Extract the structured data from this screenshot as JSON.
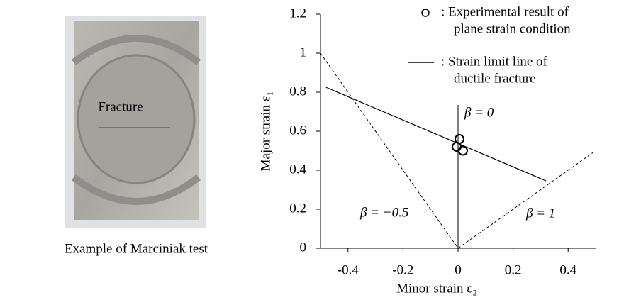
{
  "photo": {
    "label": "Fracture",
    "caption": "Example of Marciniak test"
  },
  "chart_data": {
    "type": "scatter",
    "xlabel": "Minor strain  ε₂",
    "ylabel": "Major strain  ε₁",
    "xlim": [
      -0.5,
      0.5
    ],
    "ylim": [
      0,
      1.2
    ],
    "xticks": [
      -0.4,
      -0.2,
      0,
      0.2,
      0.4
    ],
    "yticks": [
      0,
      0.2,
      0.4,
      0.6,
      0.8,
      1,
      1.2
    ],
    "series": [
      {
        "name": [
          ": Experimental result of",
          "plane strain condition"
        ],
        "kind": "marker",
        "color": "#000000",
        "x": [
          0.005,
          -0.005,
          0.018
        ],
        "values": [
          0.56,
          0.52,
          0.5
        ]
      },
      {
        "name": [
          ": Strain limit line of",
          "ductile fracture"
        ],
        "kind": "line",
        "color": "#000000",
        "x": [
          -0.48,
          0.32
        ],
        "values": [
          0.825,
          0.345
        ]
      }
    ],
    "reference_lines": [
      {
        "label": "β = 0",
        "dashed": false,
        "x": [
          0,
          0
        ],
        "values": [
          0,
          0.735
        ]
      },
      {
        "label": "β = −0.5",
        "dashed": true,
        "x": [
          -0.5,
          0
        ],
        "values": [
          1,
          0
        ]
      },
      {
        "label": "β = 1",
        "dashed": true,
        "x": [
          0,
          0.5
        ],
        "values": [
          0,
          0.5
        ]
      }
    ]
  }
}
